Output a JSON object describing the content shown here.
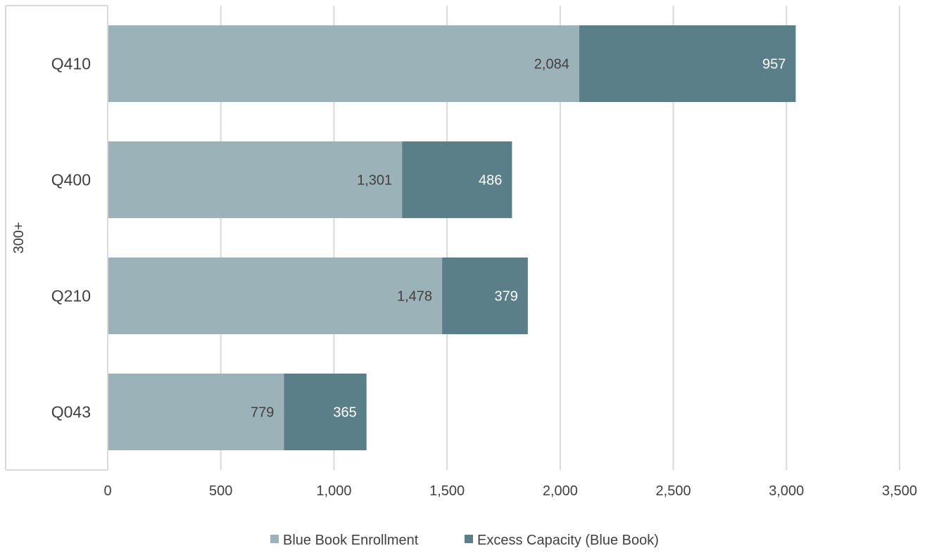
{
  "chart_data": {
    "type": "bar",
    "orientation": "horizontal",
    "stacked": true,
    "group_label": "300+",
    "categories": [
      "Q410",
      "Q400",
      "Q210",
      "Q043"
    ],
    "series": [
      {
        "name": "Blue Book Enrollment",
        "color": "#9cb2b9",
        "label_color": "#404040",
        "values": [
          2084,
          1301,
          1478,
          779
        ],
        "labels": [
          "2,084",
          "1,301",
          "1,478",
          "779"
        ]
      },
      {
        "name": "Excess Capacity (Blue Book)",
        "color": "#5b7f88",
        "label_color": "#ffffff",
        "values": [
          957,
          486,
          379,
          365
        ],
        "labels": [
          "957",
          "486",
          "379",
          "365"
        ]
      }
    ],
    "xlim": [
      0,
      3500
    ],
    "xticks": [
      0,
      500,
      1000,
      1500,
      2000,
      2500,
      3000,
      3500
    ],
    "xtick_labels": [
      "0",
      "500",
      "1,000",
      "1,500",
      "2,000",
      "2,500",
      "3,000",
      "3,500"
    ],
    "grid": true,
    "legend_position": "bottom"
  }
}
